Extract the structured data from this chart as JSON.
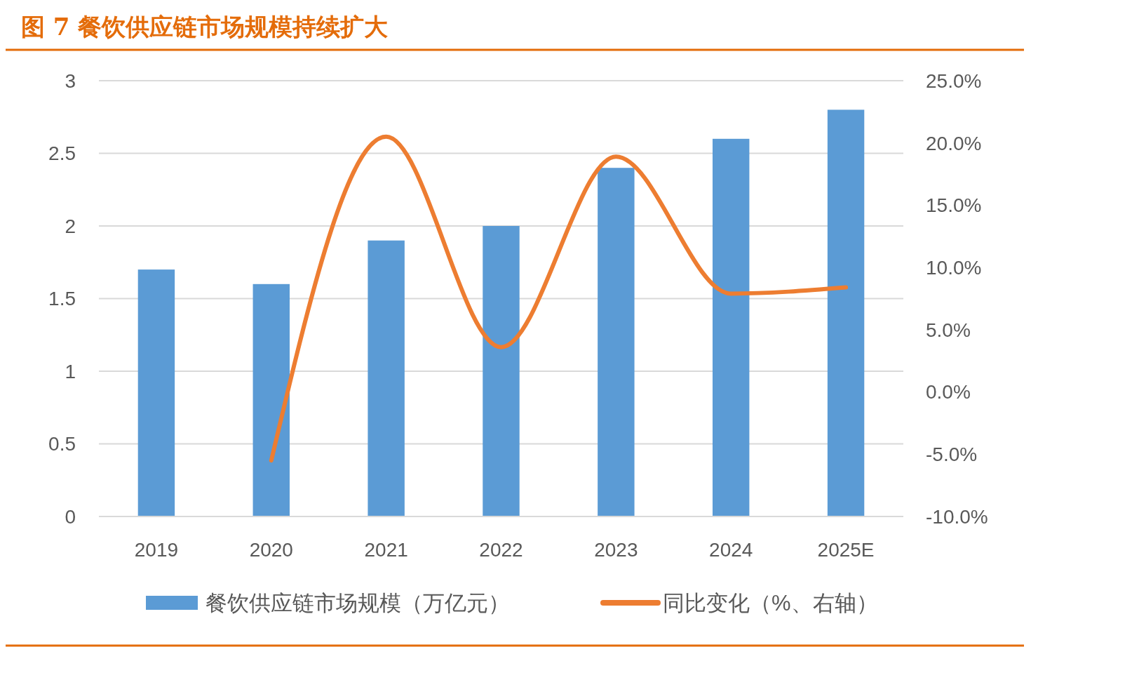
{
  "chart_data": {
    "type": "bar",
    "title": "图 7  餐饮供应链市场规模持续扩大",
    "categories": [
      "2019",
      "2020",
      "2021",
      "2022",
      "2023",
      "2024",
      "2025E"
    ],
    "series": [
      {
        "name": "餐饮供应链市场规模（万亿元）",
        "color": "#5b9bd5",
        "values": [
          1.7,
          1.6,
          1.9,
          2.0,
          2.4,
          2.6,
          2.8
        ]
      },
      {
        "name": "同比变化（%、右轴）",
        "type": "line",
        "axis": "y2",
        "color": "#ed7d31",
        "values": [
          null,
          -5.5,
          20.5,
          3.6,
          18.9,
          7.9,
          8.4
        ]
      }
    ],
    "ylim": [
      0,
      3
    ],
    "yticks": [
      0,
      0.5,
      1,
      1.5,
      2,
      2.5,
      3
    ],
    "y2lim": [
      -10,
      25
    ],
    "y2ticks": [
      {
        "value": -10,
        "label": "-10.0%"
      },
      {
        "value": -5,
        "label": "-5.0%"
      },
      {
        "value": 0,
        "label": "0.0%"
      },
      {
        "value": 5,
        "label": "5.0%"
      },
      {
        "value": 10,
        "label": "10.0%"
      },
      {
        "value": 15,
        "label": "15.0%"
      },
      {
        "value": 20,
        "label": "20.0%"
      },
      {
        "value": 25,
        "label": "25.0%"
      }
    ],
    "grid": "y",
    "legend": "bottom",
    "marker": "none"
  }
}
